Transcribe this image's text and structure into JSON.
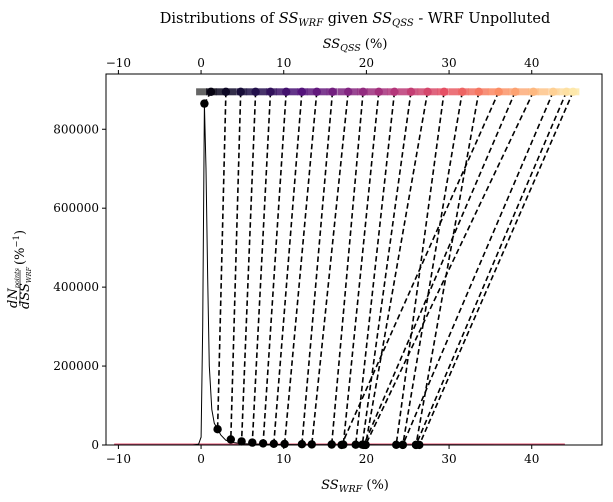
{
  "chart_data": {
    "type": "line",
    "title_parts": {
      "t1": "Distributions of ",
      "a1": "SS",
      "a1sub": "WRF",
      "t2": " given ",
      "a2": "SS",
      "a2sub": "QSS",
      "t3": " - WRF Unpolluted"
    },
    "xlabel": {
      "sym": "SS",
      "sub": "WRF",
      "unit": " (%)"
    },
    "x2label": {
      "sym": "SS",
      "sub": "QSS",
      "unit": " (%)"
    },
    "ylabel": {
      "num": "dN",
      "num_sub": "points",
      "den": "dSS",
      "den_sub": "WRF",
      "unit": "(%",
      "unit_exp": "−1",
      "close": ")"
    },
    "xlim": [
      -11.5,
      48.5
    ],
    "ylim": [
      0,
      940000
    ],
    "x_ticks": [
      -10,
      0,
      10,
      20,
      30,
      40
    ],
    "x_tick_labels": [
      "−10",
      "0",
      "10",
      "20",
      "30",
      "40"
    ],
    "y_ticks": [
      0,
      200000,
      400000,
      600000,
      800000
    ],
    "y_tick_labels": [
      "0",
      "200000",
      "400000",
      "600000",
      "800000"
    ],
    "top_row_y": 895000,
    "qss_bins": [
      0,
      1.2,
      2.4,
      3.6,
      4.9,
      6.1,
      7.3,
      8.5,
      9.7,
      11.0,
      12.2,
      13.4,
      14.6,
      15.8,
      17.1,
      18.3,
      19.5,
      20.7,
      21.9,
      23.1,
      24.4,
      25.6,
      26.8,
      28.0,
      29.2,
      30.5,
      31.7,
      32.9,
      34.1,
      35.3,
      36.6,
      37.8,
      39.0,
      40.2,
      41.4,
      42.7,
      43.9,
      45.1
    ],
    "connectors": [
      {
        "qss": 1.2,
        "wrf": 0.4,
        "wrf_y": 865000
      },
      {
        "qss": 3.0,
        "wrf": 2.0,
        "wrf_y": 40000
      },
      {
        "qss": 4.8,
        "wrf": 3.6,
        "wrf_y": 14000
      },
      {
        "qss": 6.6,
        "wrf": 4.9,
        "wrf_y": 9000
      },
      {
        "qss": 8.4,
        "wrf": 6.2,
        "wrf_y": 6000
      },
      {
        "qss": 10.3,
        "wrf": 7.5,
        "wrf_y": 4000
      },
      {
        "qss": 12.2,
        "wrf": 8.8,
        "wrf_y": 3000
      },
      {
        "qss": 14.0,
        "wrf": 10.1,
        "wrf_y": 2500
      },
      {
        "qss": 15.9,
        "wrf": 12.2,
        "wrf_y": 2000
      },
      {
        "qss": 17.8,
        "wrf": 13.4,
        "wrf_y": 1500
      },
      {
        "qss": 19.6,
        "wrf": 15.8,
        "wrf_y": 1200
      },
      {
        "qss": 21.5,
        "wrf": 17.2,
        "wrf_y": 1000
      },
      {
        "qss": 23.4,
        "wrf": 18.7,
        "wrf_y": 800
      },
      {
        "qss": 25.4,
        "wrf": 19.5,
        "wrf_y": 700
      },
      {
        "qss": 27.4,
        "wrf": 19.9,
        "wrf_y": 600
      },
      {
        "qss": 29.4,
        "wrf": 23.6,
        "wrf_y": 500
      },
      {
        "qss": 31.6,
        "wrf": 24.4,
        "wrf_y": 400
      },
      {
        "qss": 33.6,
        "wrf": 26.0,
        "wrf_y": 300
      },
      {
        "qss": 36.0,
        "wrf": 17.0,
        "wrf_y": 300
      },
      {
        "qss": 38.0,
        "wrf": 19.7,
        "wrf_y": 300
      },
      {
        "qss": 40.2,
        "wrf": 19.9,
        "wrf_y": 200
      },
      {
        "qss": 42.6,
        "wrf": 24.4,
        "wrf_y": 200
      },
      {
        "qss": 44.2,
        "wrf": 26.0,
        "wrf_y": 200
      },
      {
        "qss": 45.0,
        "wrf": 26.4,
        "wrf_y": 200
      }
    ],
    "spike_curve": {
      "x": [
        -11,
        -1.0,
        -0.3,
        0.0,
        0.2,
        0.4,
        0.6,
        0.8,
        1.0,
        1.3,
        1.6,
        2.0,
        2.4,
        3.0,
        4.0,
        5.0,
        8.0,
        12.0,
        20.0,
        26.0,
        30.0,
        36.0,
        44.0
      ],
      "y": [
        0,
        0,
        2000,
        20000,
        300000,
        865000,
        700000,
        420000,
        200000,
        90000,
        55000,
        40000,
        25000,
        12000,
        6000,
        3000,
        1500,
        800,
        400,
        250,
        200,
        100,
        0
      ]
    },
    "colors": {
      "connector": "#000000",
      "spike": "#000000",
      "colormap": [
        "#000004",
        "#1c1044",
        "#4f127b",
        "#812581",
        "#b5367a",
        "#e55064",
        "#fb8761",
        "#fec287",
        "#fcfdbf"
      ],
      "baseline_curves": [
        "#1c1044",
        "#b5367a",
        "#e55064"
      ]
    }
  }
}
